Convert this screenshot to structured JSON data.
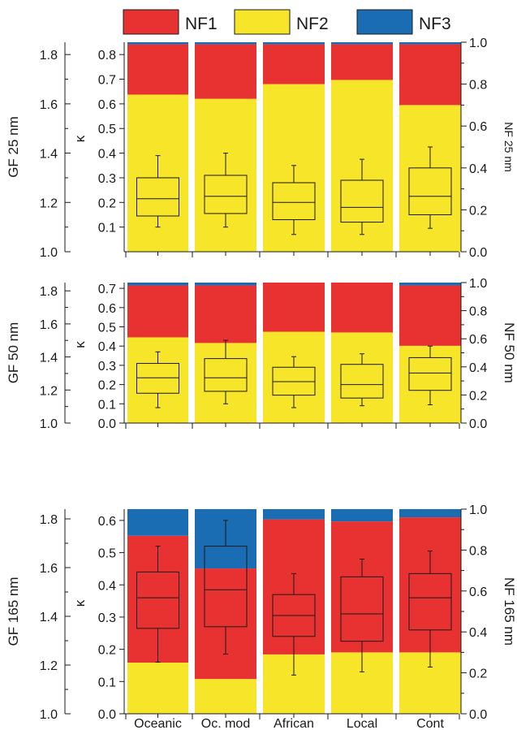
{
  "colors": {
    "NF1": "#e83232",
    "NF2": "#f7e52a",
    "NF3": "#1a6db3",
    "axis": "#1a1a1a"
  },
  "legend": [
    {
      "key": "NF1",
      "label": "NF1"
    },
    {
      "key": "NF2",
      "label": "NF2"
    },
    {
      "key": "NF3",
      "label": "NF3"
    }
  ],
  "chart_data": [
    {
      "type": "bar",
      "stacked": true,
      "overlay": "boxplot",
      "categories": [
        "Oceanic",
        "Oc. mod",
        "African",
        "Local",
        "Cont"
      ],
      "left_axis": {
        "label": "GF 25 nm",
        "range": [
          1.0,
          1.85
        ],
        "ticks": [
          "1.0",
          "1.2",
          "1.4",
          "1.6",
          "1.8"
        ]
      },
      "kappa_axis": {
        "label": "κ",
        "range": [
          0.0,
          0.85
        ],
        "ticks": [
          "0.1",
          "0.2",
          "0.3",
          "0.4",
          "0.5",
          "0.6",
          "0.7",
          "0.8"
        ]
      },
      "right_axis": {
        "label": "NF 25 nm",
        "range": [
          0.0,
          1.0
        ],
        "ticks": [
          "0.0",
          "0.2",
          "0.4",
          "0.6",
          "0.8",
          "1.0"
        ]
      },
      "series": [
        {
          "key": "NF2",
          "name": "NF2",
          "values": [
            0.75,
            0.73,
            0.8,
            0.82,
            0.7
          ]
        },
        {
          "key": "NF1",
          "name": "NF1",
          "values": [
            0.24,
            0.26,
            0.19,
            0.17,
            0.29
          ]
        },
        {
          "key": "NF3",
          "name": "NF3",
          "values": [
            0.01,
            0.01,
            0.01,
            0.01,
            0.01
          ]
        }
      ],
      "boxes": [
        {
          "min": 0.1,
          "q1": 0.145,
          "median": 0.215,
          "q3": 0.3,
          "max": 0.39
        },
        {
          "min": 0.1,
          "q1": 0.155,
          "median": 0.225,
          "q3": 0.31,
          "max": 0.4
        },
        {
          "min": 0.07,
          "q1": 0.13,
          "median": 0.2,
          "q3": 0.28,
          "max": 0.35
        },
        {
          "min": 0.07,
          "q1": 0.12,
          "median": 0.18,
          "q3": 0.29,
          "max": 0.375
        },
        {
          "min": 0.095,
          "q1": 0.15,
          "median": 0.225,
          "q3": 0.34,
          "max": 0.425
        }
      ]
    },
    {
      "type": "bar",
      "stacked": true,
      "overlay": "boxplot",
      "categories": [
        "Oceanic",
        "Oc. mod",
        "African",
        "Local",
        "Cont"
      ],
      "left_axis": {
        "label": "GF 50 nm",
        "range": [
          1.0,
          1.85
        ],
        "ticks": [
          "1.0",
          "1.2",
          "1.4",
          "1.6",
          "1.8"
        ]
      },
      "kappa_axis": {
        "label": "κ",
        "range": [
          0.0,
          0.73
        ],
        "ticks": [
          "0.0",
          "0.1",
          "0.2",
          "0.3",
          "0.4",
          "0.5",
          "0.6",
          "0.7"
        ]
      },
      "right_axis": {
        "label": "NF 50 nm",
        "range": [
          0.0,
          1.0
        ],
        "ticks": [
          "0.0",
          "0.2",
          "0.4",
          "0.6",
          "0.8",
          "1.0"
        ]
      },
      "series": [
        {
          "key": "NF2",
          "name": "NF2",
          "values": [
            0.61,
            0.57,
            0.65,
            0.645,
            0.55
          ]
        },
        {
          "key": "NF1",
          "name": "NF1",
          "values": [
            0.37,
            0.41,
            0.35,
            0.355,
            0.43
          ]
        },
        {
          "key": "NF3",
          "name": "NF3",
          "values": [
            0.02,
            0.02,
            0.0,
            0.0,
            0.02
          ]
        }
      ],
      "boxes": [
        {
          "min": 0.08,
          "q1": 0.155,
          "median": 0.235,
          "q3": 0.31,
          "max": 0.37
        },
        {
          "min": 0.1,
          "q1": 0.165,
          "median": 0.235,
          "q3": 0.335,
          "max": 0.43
        },
        {
          "min": 0.08,
          "q1": 0.145,
          "median": 0.215,
          "q3": 0.29,
          "max": 0.345
        },
        {
          "min": 0.09,
          "q1": 0.13,
          "median": 0.2,
          "q3": 0.305,
          "max": 0.36
        },
        {
          "min": 0.095,
          "q1": 0.17,
          "median": 0.26,
          "q3": 0.34,
          "max": 0.4
        }
      ]
    },
    {
      "type": "bar",
      "stacked": true,
      "overlay": "boxplot",
      "categories": [
        "Oceanic",
        "Oc. mod",
        "African",
        "Local",
        "Cont"
      ],
      "left_axis": {
        "label": "GF 165 nm",
        "range": [
          1.0,
          1.84
        ],
        "ticks": [
          "1.0",
          "1.2",
          "1.4",
          "1.6",
          "1.8"
        ]
      },
      "kappa_axis": {
        "label": "κ",
        "range": [
          0.0,
          0.635
        ],
        "ticks": [
          "0.0",
          "0.1",
          "0.2",
          "0.3",
          "0.4",
          "0.5",
          "0.6"
        ]
      },
      "right_axis": {
        "label": "NF 165 nm",
        "range": [
          0.0,
          1.0
        ],
        "ticks": [
          "0.0",
          "0.2",
          "0.4",
          "0.6",
          "0.8",
          "1.0"
        ]
      },
      "series": [
        {
          "key": "NF2",
          "name": "NF2",
          "values": [
            0.25,
            0.17,
            0.29,
            0.3,
            0.3
          ]
        },
        {
          "key": "NF1",
          "name": "NF1",
          "values": [
            0.62,
            0.54,
            0.66,
            0.64,
            0.66
          ]
        },
        {
          "key": "NF3",
          "name": "NF3",
          "values": [
            0.13,
            0.29,
            0.05,
            0.06,
            0.04
          ]
        }
      ],
      "boxes": [
        {
          "min": 0.16,
          "q1": 0.265,
          "median": 0.36,
          "q3": 0.44,
          "max": 0.52
        },
        {
          "min": 0.185,
          "q1": 0.27,
          "median": 0.385,
          "q3": 0.52,
          "max": 0.6
        },
        {
          "min": 0.12,
          "q1": 0.24,
          "median": 0.305,
          "q3": 0.37,
          "max": 0.435
        },
        {
          "min": 0.13,
          "q1": 0.225,
          "median": 0.31,
          "q3": 0.425,
          "max": 0.48
        },
        {
          "min": 0.145,
          "q1": 0.26,
          "median": 0.36,
          "q3": 0.435,
          "max": 0.505
        }
      ]
    }
  ]
}
